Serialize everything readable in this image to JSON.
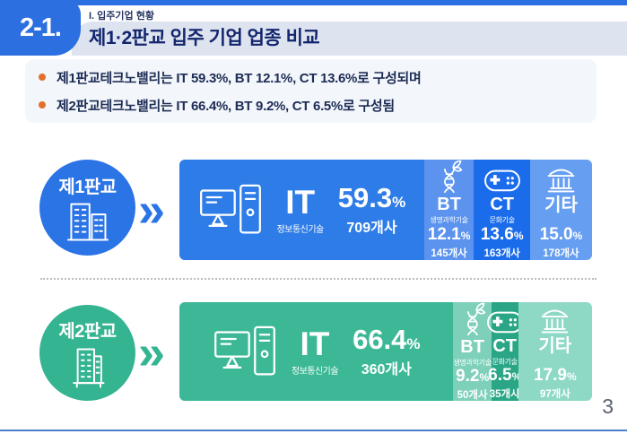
{
  "header": {
    "badge": "2-1.",
    "section_label": "I. 입주기업 현황",
    "title": "제1·2판교 입주 기업 업종 비교"
  },
  "summary_bullets": [
    "제1판교테크노밸리는 IT 59.3%, BT 12.1%, CT 13.6%로 구성되며",
    "제2판교테크노밸리는 IT 66.4%, BT 9.2%, CT 6.5%로 구성됨"
  ],
  "chart_data": {
    "type": "bar",
    "title": "제1·2판교 입주 기업 업종 비교",
    "note": "two 100% stacked horizontal bars; segment width proportional to percent of tenant companies",
    "percent_sign": "%",
    "chevron_glyph": "»",
    "rows": [
      {
        "name": "제1판교",
        "colors": {
          "accent": "#2b74e6",
          "it": "#2e7ce7",
          "bt": "#5b93ee",
          "ct": "#1b6ceb",
          "etc": "#669ef1"
        },
        "segments": [
          {
            "code": "IT",
            "sublabel": "정보통신기술",
            "value": 59.3,
            "percent": "59.3",
            "count": "709개사",
            "icon": "desktop-computer"
          },
          {
            "code": "BT",
            "sublabel": "생명과학기술",
            "value": 12.1,
            "percent": "12.1",
            "count": "145개사",
            "icon": "dna"
          },
          {
            "code": "CT",
            "sublabel": "문화기술",
            "value": 13.6,
            "percent": "13.6",
            "count": "163개사",
            "icon": "game-controller"
          },
          {
            "code": "기타",
            "sublabel": "",
            "value": 15.0,
            "percent": "15.0",
            "count": "178개사",
            "icon": "bank"
          }
        ]
      },
      {
        "name": "제2판교",
        "colors": {
          "accent": "#35b492",
          "it": "#3cb897",
          "bt": "#7ed0ba",
          "ct": "#2aa686",
          "etc": "#8ed8c6"
        },
        "segments": [
          {
            "code": "IT",
            "sublabel": "정보통신기술",
            "value": 66.4,
            "percent": "66.4",
            "count": "360개사",
            "icon": "desktop-computer"
          },
          {
            "code": "BT",
            "sublabel": "생명과학기술",
            "value": 9.2,
            "percent": "9.2",
            "count": "50개사",
            "icon": "dna"
          },
          {
            "code": "CT",
            "sublabel": "문화기술",
            "value": 6.5,
            "percent": "6.5",
            "count": "35개사",
            "icon": "game-controller"
          },
          {
            "code": "기타",
            "sublabel": "",
            "value": 17.9,
            "percent": "17.9",
            "count": "97개사",
            "icon": "bank"
          }
        ]
      }
    ]
  },
  "colors": {
    "top_accent": "#2b6fe0",
    "title_band": "#dde4ef",
    "bullet_dot": "#e2702d",
    "bottom_line": "#4c80cf"
  },
  "footer": {
    "page_number": "3"
  }
}
